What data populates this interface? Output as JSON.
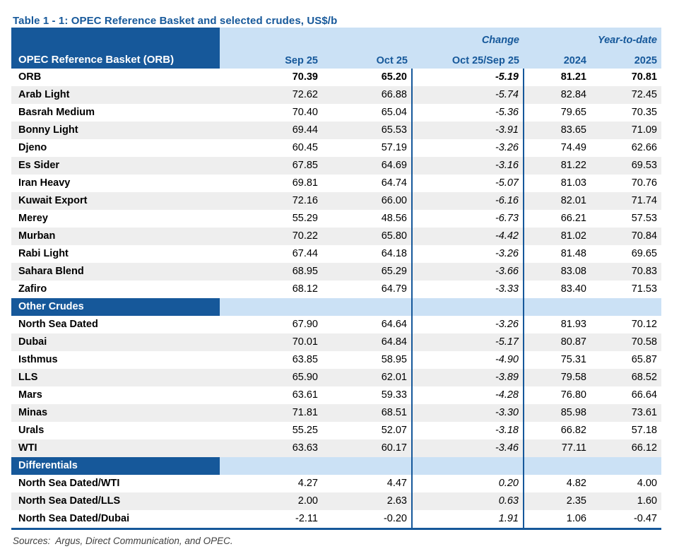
{
  "title": "Table 1 - 1: OPEC Reference Basket and selected crudes, US$/b",
  "theme": {
    "dark_blue": "#16589a",
    "light_blue": "#cbe1f5",
    "row_alt_gray": "#eeeeee",
    "text_black": "#000000",
    "footer_gray": "#404040"
  },
  "table": {
    "corner_label": "OPEC Reference Basket (ORB)",
    "group_headers": {
      "change": "Change",
      "ytd": "Year-to-date"
    },
    "columns": [
      "Sep 25",
      "Oct 25",
      "Oct 25/Sep 25",
      "2024",
      "2025"
    ],
    "sections": [
      {
        "header": null,
        "rows": [
          {
            "name": "ORB",
            "bold": true,
            "values": [
              "70.39",
              "65.20",
              "-5.19",
              "81.21",
              "70.81"
            ]
          },
          {
            "name": "Arab Light",
            "values": [
              "72.62",
              "66.88",
              "-5.74",
              "82.84",
              "72.45"
            ]
          },
          {
            "name": "Basrah Medium",
            "values": [
              "70.40",
              "65.04",
              "-5.36",
              "79.65",
              "70.35"
            ]
          },
          {
            "name": "Bonny Light",
            "values": [
              "69.44",
              "65.53",
              "-3.91",
              "83.65",
              "71.09"
            ]
          },
          {
            "name": "Djeno",
            "values": [
              "60.45",
              "57.19",
              "-3.26",
              "74.49",
              "62.66"
            ]
          },
          {
            "name": "Es Sider",
            "values": [
              "67.85",
              "64.69",
              "-3.16",
              "81.22",
              "69.53"
            ]
          },
          {
            "name": "Iran Heavy",
            "values": [
              "69.81",
              "64.74",
              "-5.07",
              "81.03",
              "70.76"
            ]
          },
          {
            "name": "Kuwait Export",
            "values": [
              "72.16",
              "66.00",
              "-6.16",
              "82.01",
              "71.74"
            ]
          },
          {
            "name": "Merey",
            "values": [
              "55.29",
              "48.56",
              "-6.73",
              "66.21",
              "57.53"
            ]
          },
          {
            "name": "Murban",
            "values": [
              "70.22",
              "65.80",
              "-4.42",
              "81.02",
              "70.84"
            ]
          },
          {
            "name": "Rabi Light",
            "values": [
              "67.44",
              "64.18",
              "-3.26",
              "81.48",
              "69.65"
            ]
          },
          {
            "name": "Sahara Blend",
            "values": [
              "68.95",
              "65.29",
              "-3.66",
              "83.08",
              "70.83"
            ]
          },
          {
            "name": "Zafiro",
            "values": [
              "68.12",
              "64.79",
              "-3.33",
              "83.40",
              "71.53"
            ]
          }
        ]
      },
      {
        "header": "Other Crudes",
        "rows": [
          {
            "name": "North Sea Dated",
            "values": [
              "67.90",
              "64.64",
              "-3.26",
              "81.93",
              "70.12"
            ]
          },
          {
            "name": "Dubai",
            "values": [
              "70.01",
              "64.84",
              "-5.17",
              "80.87",
              "70.58"
            ]
          },
          {
            "name": "Isthmus",
            "values": [
              "63.85",
              "58.95",
              "-4.90",
              "75.31",
              "65.87"
            ]
          },
          {
            "name": "LLS",
            "values": [
              "65.90",
              "62.01",
              "-3.89",
              "79.58",
              "68.52"
            ]
          },
          {
            "name": "Mars",
            "values": [
              "63.61",
              "59.33",
              "-4.28",
              "76.80",
              "66.64"
            ]
          },
          {
            "name": "Minas",
            "values": [
              "71.81",
              "68.51",
              "-3.30",
              "85.98",
              "73.61"
            ]
          },
          {
            "name": "Urals",
            "values": [
              "55.25",
              "52.07",
              "-3.18",
              "66.82",
              "57.18"
            ]
          },
          {
            "name": "WTI",
            "values": [
              "63.63",
              "60.17",
              "-3.46",
              "77.11",
              "66.12"
            ]
          }
        ]
      },
      {
        "header": "Differentials",
        "rows": [
          {
            "name": "North Sea Dated/WTI",
            "values": [
              "4.27",
              "4.47",
              "0.20",
              "4.82",
              "4.00"
            ]
          },
          {
            "name": "North Sea Dated/LLS",
            "values": [
              "2.00",
              "2.63",
              "0.63",
              "2.35",
              "1.60"
            ]
          },
          {
            "name": "North Sea Dated/Dubai",
            "values": [
              "-2.11",
              "-0.20",
              "1.91",
              "1.06",
              "-0.47"
            ]
          }
        ]
      }
    ]
  },
  "footer": {
    "sources": "Sources:  Argus, Direct Communication, and OPEC."
  }
}
